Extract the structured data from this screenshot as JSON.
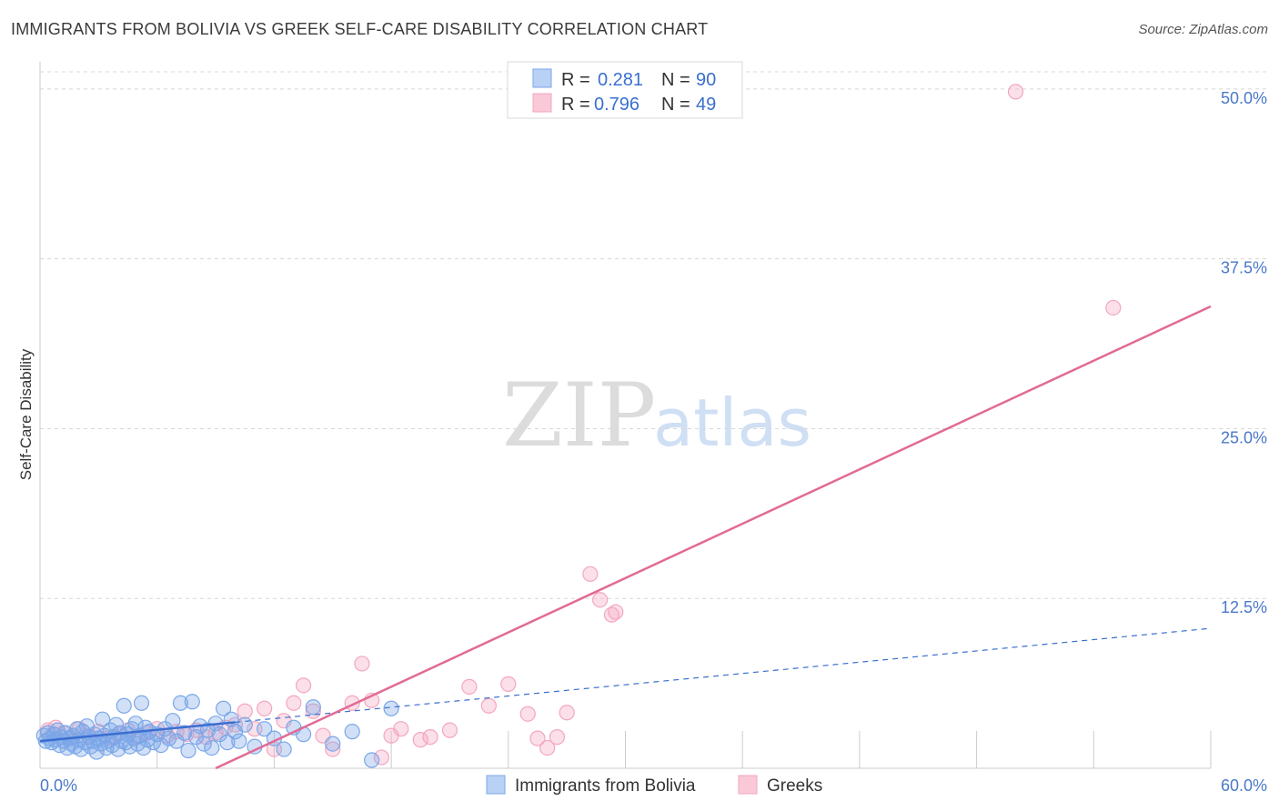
{
  "title": "IMMIGRANTS FROM BOLIVIA VS GREEK SELF-CARE DISABILITY CORRELATION CHART",
  "source": "Source: ZipAtlas.com",
  "watermark": {
    "zip": "ZIP",
    "atlas": "atlas"
  },
  "colors": {
    "blue": "#7aa7e8",
    "blue_line": "#3a6fd0",
    "pink": "#f4a6bf",
    "pink_line": "#e26a95",
    "grid": "#d8d8d8"
  },
  "legend": {
    "rows": [
      {
        "r_label": "R = ",
        "r_value": "0.281",
        "n_label": "N = ",
        "n_value": "90"
      },
      {
        "r_label": "R = ",
        "r_value": "0.796",
        "n_label": "N = ",
        "n_value": "49"
      }
    ]
  },
  "bottom_legend": {
    "series1": "Immigrants from Bolivia",
    "series2": "Greeks"
  },
  "chart_data": {
    "type": "scatter",
    "title": "IMMIGRANTS FROM BOLIVIA VS GREEK SELF-CARE DISABILITY CORRELATION CHART",
    "xlabel": "",
    "ylabel": "Self-Care Disability",
    "xlim": [
      0,
      60
    ],
    "ylim": [
      0,
      52
    ],
    "x_tick_labels": [
      "0.0%",
      "60.0%"
    ],
    "y_ticks": [
      12.5,
      25.0,
      37.5,
      50.0
    ],
    "y_tick_labels": [
      "12.5%",
      "25.0%",
      "37.5%",
      "50.0%"
    ],
    "series": [
      {
        "name": "Immigrants from Bolivia",
        "R": 0.281,
        "N": 90,
        "trend": {
          "x0": 0,
          "y0": 2.0,
          "x1": 60,
          "y1": 10.3,
          "solid_until": 10
        },
        "points": [
          [
            0.2,
            2.4
          ],
          [
            0.3,
            2.0
          ],
          [
            0.4,
            2.6
          ],
          [
            0.5,
            2.2
          ],
          [
            0.6,
            1.9
          ],
          [
            0.7,
            2.5
          ],
          [
            0.8,
            2.1
          ],
          [
            0.9,
            2.8
          ],
          [
            1.0,
            1.7
          ],
          [
            1.1,
            2.3
          ],
          [
            1.2,
            2.0
          ],
          [
            1.3,
            2.6
          ],
          [
            1.4,
            1.5
          ],
          [
            1.5,
            2.2
          ],
          [
            1.6,
            1.8
          ],
          [
            1.7,
            2.4
          ],
          [
            1.8,
            1.6
          ],
          [
            1.9,
            2.9
          ],
          [
            2.0,
            2.1
          ],
          [
            2.1,
            1.4
          ],
          [
            2.2,
            2.7
          ],
          [
            2.3,
            1.9
          ],
          [
            2.4,
            3.1
          ],
          [
            2.5,
            2.3
          ],
          [
            2.6,
            1.6
          ],
          [
            2.7,
            2.0
          ],
          [
            2.8,
            2.5
          ],
          [
            2.9,
            1.2
          ],
          [
            3.0,
            2.2
          ],
          [
            3.1,
            1.8
          ],
          [
            3.2,
            3.6
          ],
          [
            3.3,
            2.4
          ],
          [
            3.4,
            1.5
          ],
          [
            3.5,
            2.0
          ],
          [
            3.6,
            2.8
          ],
          [
            3.7,
            1.7
          ],
          [
            3.8,
            2.3
          ],
          [
            3.9,
            3.2
          ],
          [
            4.0,
            1.4
          ],
          [
            4.1,
            2.6
          ],
          [
            4.2,
            2.0
          ],
          [
            4.3,
            4.6
          ],
          [
            4.4,
            1.9
          ],
          [
            4.5,
            2.5
          ],
          [
            4.6,
            1.6
          ],
          [
            4.7,
            2.9
          ],
          [
            4.8,
            2.2
          ],
          [
            4.9,
            3.3
          ],
          [
            5.0,
            1.8
          ],
          [
            5.1,
            2.4
          ],
          [
            5.2,
            4.8
          ],
          [
            5.3,
            1.5
          ],
          [
            5.4,
            3.0
          ],
          [
            5.5,
            2.1
          ],
          [
            5.6,
            2.7
          ],
          [
            5.8,
            1.9
          ],
          [
            6.0,
            2.5
          ],
          [
            6.2,
            1.7
          ],
          [
            6.4,
            2.9
          ],
          [
            6.6,
            2.2
          ],
          [
            6.8,
            3.5
          ],
          [
            7.0,
            2.0
          ],
          [
            7.2,
            4.8
          ],
          [
            7.4,
            2.6
          ],
          [
            7.6,
            1.3
          ],
          [
            7.8,
            4.9
          ],
          [
            8.0,
            2.3
          ],
          [
            8.2,
            3.1
          ],
          [
            8.4,
            1.8
          ],
          [
            8.6,
            2.8
          ],
          [
            8.8,
            1.5
          ],
          [
            9.0,
            3.3
          ],
          [
            9.2,
            2.5
          ],
          [
            9.4,
            4.4
          ],
          [
            9.6,
            1.9
          ],
          [
            9.8,
            3.6
          ],
          [
            10.0,
            2.7
          ],
          [
            10.2,
            2.0
          ],
          [
            10.5,
            3.2
          ],
          [
            11.0,
            1.6
          ],
          [
            11.5,
            2.9
          ],
          [
            12.0,
            2.2
          ],
          [
            12.5,
            1.4
          ],
          [
            13.0,
            3.0
          ],
          [
            13.5,
            2.5
          ],
          [
            14.0,
            4.5
          ],
          [
            15.0,
            1.8
          ],
          [
            16.0,
            2.7
          ],
          [
            17.0,
            0.6
          ],
          [
            18.0,
            4.4
          ]
        ]
      },
      {
        "name": "Greeks",
        "R": 0.796,
        "N": 49,
        "trend": {
          "x0": 0,
          "y0": -6.0,
          "x1": 60,
          "y1": 34.0
        },
        "points": [
          [
            0.4,
            2.8
          ],
          [
            0.8,
            3.0
          ],
          [
            1.2,
            2.6
          ],
          [
            1.6,
            2.3
          ],
          [
            2.0,
            2.9
          ],
          [
            2.5,
            2.4
          ],
          [
            3.0,
            2.7
          ],
          [
            3.5,
            2.2
          ],
          [
            4.0,
            2.5
          ],
          [
            4.5,
            2.8
          ],
          [
            5.0,
            2.3
          ],
          [
            5.5,
            2.6
          ],
          [
            6.0,
            2.9
          ],
          [
            6.5,
            2.4
          ],
          [
            7.0,
            2.7
          ],
          [
            7.5,
            2.5
          ],
          [
            8.0,
            2.8
          ],
          [
            8.5,
            2.3
          ],
          [
            9.0,
            2.6
          ],
          [
            9.5,
            3.0
          ],
          [
            10.0,
            3.2
          ],
          [
            10.5,
            4.2
          ],
          [
            11.0,
            2.9
          ],
          [
            11.5,
            4.4
          ],
          [
            12.0,
            1.4
          ],
          [
            12.5,
            3.5
          ],
          [
            13.0,
            4.8
          ],
          [
            13.5,
            6.1
          ],
          [
            14.0,
            4.2
          ],
          [
            14.5,
            2.4
          ],
          [
            15.0,
            1.4
          ],
          [
            16.0,
            4.8
          ],
          [
            16.5,
            7.7
          ],
          [
            17.0,
            5.0
          ],
          [
            17.5,
            0.8
          ],
          [
            18.0,
            2.4
          ],
          [
            18.5,
            2.9
          ],
          [
            19.5,
            2.1
          ],
          [
            20.0,
            2.3
          ],
          [
            21.0,
            2.8
          ],
          [
            22.0,
            6.0
          ],
          [
            23.0,
            4.6
          ],
          [
            24.0,
            6.2
          ],
          [
            25.0,
            4.0
          ],
          [
            25.5,
            2.2
          ],
          [
            26.0,
            1.5
          ],
          [
            26.5,
            2.3
          ],
          [
            27.0,
            4.1
          ],
          [
            55.0,
            33.9
          ]
        ],
        "outliers": [
          [
            28.2,
            14.3
          ],
          [
            28.7,
            12.4
          ],
          [
            29.3,
            11.3
          ],
          [
            29.5,
            11.5
          ],
          [
            50.0,
            49.8
          ]
        ]
      }
    ]
  }
}
